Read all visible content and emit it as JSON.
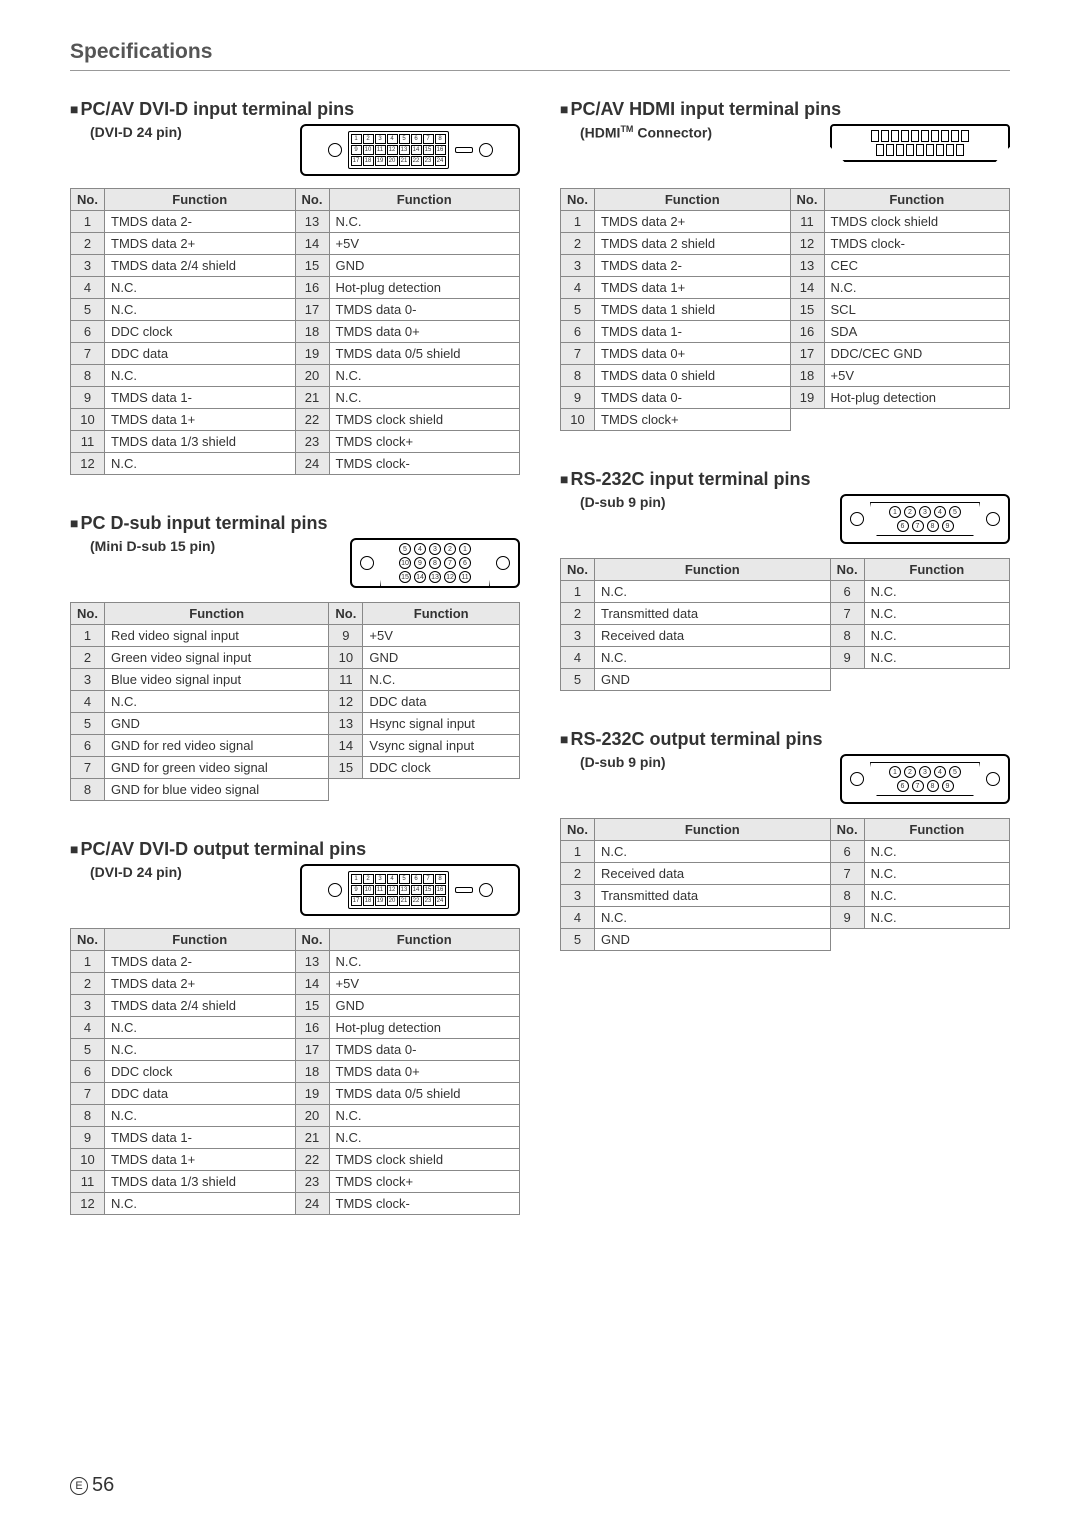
{
  "page_title": "Specifications",
  "page_number": "56",
  "page_marker": "E",
  "headers": {
    "no": "No.",
    "function": "Function"
  },
  "colors": {
    "text": "#333333",
    "border": "#888888",
    "header_bg": "#e8e8e8",
    "page_bg": "#ffffff"
  },
  "sections": {
    "dvi_in": {
      "title": "PC/AV DVI-D input terminal pins",
      "subtitle": "(DVI-D 24 pin)",
      "connector": "dvi24",
      "pins": [
        {
          "n": 1,
          "f": "TMDS data 2-"
        },
        {
          "n": 2,
          "f": "TMDS data 2+"
        },
        {
          "n": 3,
          "f": "TMDS data 2/4 shield"
        },
        {
          "n": 4,
          "f": "N.C."
        },
        {
          "n": 5,
          "f": "N.C."
        },
        {
          "n": 6,
          "f": "DDC clock"
        },
        {
          "n": 7,
          "f": "DDC data"
        },
        {
          "n": 8,
          "f": "N.C."
        },
        {
          "n": 9,
          "f": "TMDS data 1-"
        },
        {
          "n": 10,
          "f": "TMDS data 1+"
        },
        {
          "n": 11,
          "f": "TMDS data 1/3 shield"
        },
        {
          "n": 12,
          "f": "N.C."
        },
        {
          "n": 13,
          "f": "N.C."
        },
        {
          "n": 14,
          "f": "+5V"
        },
        {
          "n": 15,
          "f": "GND"
        },
        {
          "n": 16,
          "f": "Hot-plug detection"
        },
        {
          "n": 17,
          "f": "TMDS data 0-"
        },
        {
          "n": 18,
          "f": "TMDS data 0+"
        },
        {
          "n": 19,
          "f": "TMDS data 0/5 shield"
        },
        {
          "n": 20,
          "f": "N.C."
        },
        {
          "n": 21,
          "f": "N.C."
        },
        {
          "n": 22,
          "f": "TMDS clock shield"
        },
        {
          "n": 23,
          "f": "TMDS clock+"
        },
        {
          "n": 24,
          "f": "TMDS clock-"
        }
      ]
    },
    "dsub_in": {
      "title": "PC D-sub input terminal pins",
      "subtitle": "(Mini D-sub 15 pin)",
      "connector": "dsub15",
      "pins": [
        {
          "n": 1,
          "f": "Red video signal input"
        },
        {
          "n": 2,
          "f": "Green video signal input"
        },
        {
          "n": 3,
          "f": "Blue video signal input"
        },
        {
          "n": 4,
          "f": "N.C."
        },
        {
          "n": 5,
          "f": "GND"
        },
        {
          "n": 6,
          "f": "GND for red video signal"
        },
        {
          "n": 7,
          "f": "GND for green video signal"
        },
        {
          "n": 8,
          "f": "GND for blue video signal"
        },
        {
          "n": 9,
          "f": "+5V"
        },
        {
          "n": 10,
          "f": "GND"
        },
        {
          "n": 11,
          "f": "N.C."
        },
        {
          "n": 12,
          "f": "DDC data"
        },
        {
          "n": 13,
          "f": "Hsync signal input"
        },
        {
          "n": 14,
          "f": "Vsync signal input"
        },
        {
          "n": 15,
          "f": "DDC clock"
        }
      ]
    },
    "dvi_out": {
      "title": "PC/AV DVI-D output terminal pins",
      "subtitle": "(DVI-D 24 pin)",
      "connector": "dvi24",
      "pins": [
        {
          "n": 1,
          "f": "TMDS data 2-"
        },
        {
          "n": 2,
          "f": "TMDS data 2+"
        },
        {
          "n": 3,
          "f": "TMDS data 2/4 shield"
        },
        {
          "n": 4,
          "f": "N.C."
        },
        {
          "n": 5,
          "f": "N.C."
        },
        {
          "n": 6,
          "f": "DDC clock"
        },
        {
          "n": 7,
          "f": "DDC data"
        },
        {
          "n": 8,
          "f": "N.C."
        },
        {
          "n": 9,
          "f": "TMDS data 1-"
        },
        {
          "n": 10,
          "f": "TMDS data 1+"
        },
        {
          "n": 11,
          "f": "TMDS data 1/3 shield"
        },
        {
          "n": 12,
          "f": "N.C."
        },
        {
          "n": 13,
          "f": "N.C."
        },
        {
          "n": 14,
          "f": "+5V"
        },
        {
          "n": 15,
          "f": "GND"
        },
        {
          "n": 16,
          "f": "Hot-plug detection"
        },
        {
          "n": 17,
          "f": "TMDS data 0-"
        },
        {
          "n": 18,
          "f": "TMDS data 0+"
        },
        {
          "n": 19,
          "f": "TMDS data 0/5 shield"
        },
        {
          "n": 20,
          "f": "N.C."
        },
        {
          "n": 21,
          "f": "N.C."
        },
        {
          "n": 22,
          "f": "TMDS clock shield"
        },
        {
          "n": 23,
          "f": "TMDS clock+"
        },
        {
          "n": 24,
          "f": "TMDS clock-"
        }
      ]
    },
    "hdmi_in": {
      "title": "PC/AV HDMI input terminal pins",
      "subtitle_prefix": "(HDMI",
      "subtitle_suffix": " Connector)",
      "connector": "hdmi",
      "pins": [
        {
          "n": 1,
          "f": "TMDS data 2+"
        },
        {
          "n": 2,
          "f": "TMDS data 2 shield"
        },
        {
          "n": 3,
          "f": "TMDS data 2-"
        },
        {
          "n": 4,
          "f": "TMDS data 1+"
        },
        {
          "n": 5,
          "f": "TMDS data 1 shield"
        },
        {
          "n": 6,
          "f": "TMDS data 1-"
        },
        {
          "n": 7,
          "f": "TMDS data 0+"
        },
        {
          "n": 8,
          "f": "TMDS data 0 shield"
        },
        {
          "n": 9,
          "f": "TMDS data 0-"
        },
        {
          "n": 10,
          "f": "TMDS clock+"
        },
        {
          "n": 11,
          "f": "TMDS clock shield"
        },
        {
          "n": 12,
          "f": "TMDS clock-"
        },
        {
          "n": 13,
          "f": "CEC"
        },
        {
          "n": 14,
          "f": "N.C."
        },
        {
          "n": 15,
          "f": "SCL"
        },
        {
          "n": 16,
          "f": "SDA"
        },
        {
          "n": 17,
          "f": "DDC/CEC GND"
        },
        {
          "n": 18,
          "f": "+5V"
        },
        {
          "n": 19,
          "f": "Hot-plug detection"
        }
      ]
    },
    "rs232_in": {
      "title": "RS-232C input terminal pins",
      "subtitle": "(D-sub 9 pin)",
      "connector": "dsub9",
      "pins": [
        {
          "n": 1,
          "f": "N.C."
        },
        {
          "n": 2,
          "f": "Transmitted data"
        },
        {
          "n": 3,
          "f": "Received data"
        },
        {
          "n": 4,
          "f": "N.C."
        },
        {
          "n": 5,
          "f": "GND"
        },
        {
          "n": 6,
          "f": "N.C."
        },
        {
          "n": 7,
          "f": "N.C."
        },
        {
          "n": 8,
          "f": "N.C."
        },
        {
          "n": 9,
          "f": "N.C."
        }
      ]
    },
    "rs232_out": {
      "title": "RS-232C output terminal pins",
      "subtitle": "(D-sub 9 pin)",
      "connector": "dsub9",
      "pins": [
        {
          "n": 1,
          "f": "N.C."
        },
        {
          "n": 2,
          "f": "Received data"
        },
        {
          "n": 3,
          "f": "Transmitted data"
        },
        {
          "n": 4,
          "f": "N.C."
        },
        {
          "n": 5,
          "f": "GND"
        },
        {
          "n": 6,
          "f": "N.C."
        },
        {
          "n": 7,
          "f": "N.C."
        },
        {
          "n": 8,
          "f": "N.C."
        },
        {
          "n": 9,
          "f": "N.C."
        }
      ]
    }
  },
  "layout": {
    "left_col": [
      "dvi_in",
      "dsub_in",
      "dvi_out"
    ],
    "right_col": [
      "hdmi_in",
      "rs232_in",
      "rs232_out"
    ]
  },
  "diagrams": {
    "dvi24": {
      "rows": [
        [
          1,
          2,
          3,
          4,
          5,
          6,
          7,
          8
        ],
        [
          9,
          10,
          11,
          12,
          13,
          14,
          15,
          16
        ],
        [
          17,
          18,
          19,
          20,
          21,
          22,
          23,
          24
        ]
      ]
    },
    "dsub15": {
      "rows": [
        [
          5,
          4,
          3,
          2,
          1
        ],
        [
          10,
          9,
          8,
          7,
          6
        ],
        [
          15,
          14,
          13,
          12,
          11
        ]
      ],
      "reverse_trap": false
    },
    "dsub9": {
      "rows": [
        [
          1,
          2,
          3,
          4,
          5
        ],
        [
          6,
          7,
          8,
          9
        ]
      ],
      "reverse_trap": true
    },
    "hdmi": {
      "top_count": 10,
      "bottom_count": 9
    }
  }
}
